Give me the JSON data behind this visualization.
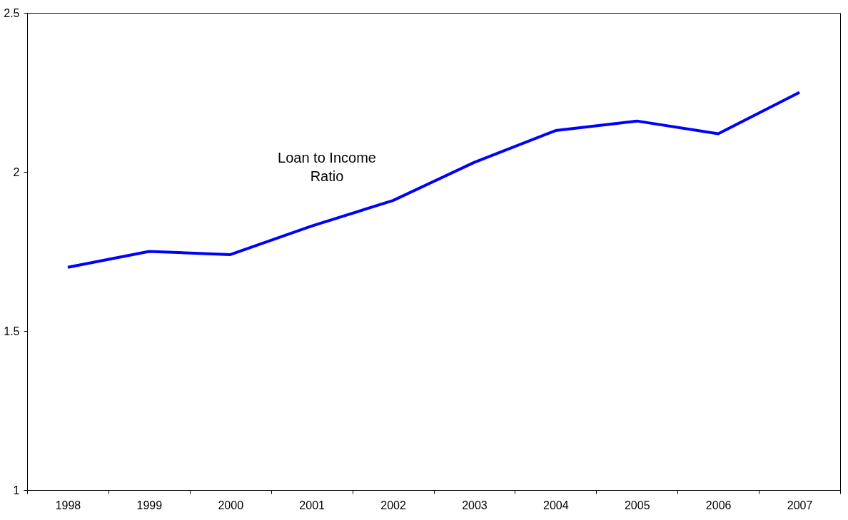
{
  "chart_data": {
    "type": "line",
    "categories": [
      "1998",
      "1999",
      "2000",
      "2001",
      "2002",
      "2003",
      "2004",
      "2005",
      "2006",
      "2007"
    ],
    "series": [
      {
        "name": "Loan to Income Ratio",
        "color": "#0000ff",
        "values": [
          1.7,
          1.75,
          1.74,
          1.83,
          1.91,
          2.03,
          2.13,
          2.16,
          2.12,
          2.25
        ]
      }
    ],
    "ylim": [
      1,
      2.5
    ],
    "yticks": [
      1,
      1.5,
      2,
      2.5
    ],
    "grid": false,
    "marker": "none",
    "line_style": "solid"
  }
}
